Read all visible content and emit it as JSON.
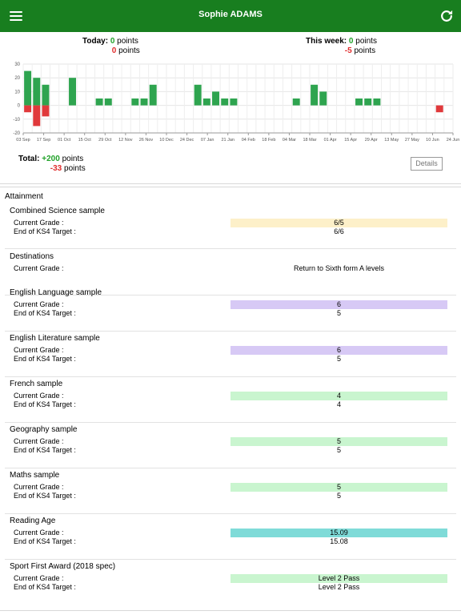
{
  "header": {
    "title": "Sophie ADAMS"
  },
  "stats": {
    "today_label": "Today:",
    "today_positive": "0",
    "today_negative": "0",
    "week_label": "This week:",
    "week_positive": "0",
    "week_negative": "-5",
    "points_word": "points",
    "total_label": "Total:",
    "total_positive": "+200",
    "total_negative": "-33",
    "details_label": "Details"
  },
  "colors": {
    "header": "#187e1f",
    "positive": "#2ea44f",
    "negative": "#e0393b"
  },
  "chart_data": {
    "type": "bar",
    "ylim": [
      -20,
      30
    ],
    "yticks": [
      30,
      20,
      10,
      0,
      -10,
      -20
    ],
    "x_labels": [
      "03 Sep",
      "17 Sep",
      "01 Oct",
      "15 Oct",
      "29 Oct",
      "12 Nov",
      "26 Nov",
      "10 Dec",
      "24 Dec",
      "07 Jan",
      "21 Jan",
      "04 Feb",
      "18 Feb",
      "04 Mar",
      "18 Mar",
      "01 Apr",
      "15 Apr",
      "29 Apr",
      "13 May",
      "27 May",
      "10 Jun",
      "24 Jun"
    ],
    "positive": [
      25,
      20,
      15,
      0,
      0,
      20,
      0,
      0,
      5,
      5,
      0,
      0,
      5,
      5,
      15,
      0,
      0,
      0,
      0,
      15,
      5,
      10,
      5,
      5,
      0,
      0,
      0,
      0,
      0,
      0,
      5,
      0,
      15,
      10,
      0,
      0,
      0,
      5,
      5,
      5,
      0,
      0,
      0,
      0,
      0,
      0,
      0,
      0
    ],
    "negative": [
      -5,
      -15,
      -8,
      0,
      0,
      0,
      0,
      0,
      0,
      0,
      0,
      0,
      0,
      0,
      0,
      0,
      0,
      0,
      0,
      0,
      0,
      0,
      0,
      0,
      0,
      0,
      0,
      0,
      0,
      0,
      0,
      0,
      0,
      0,
      0,
      0,
      0,
      0,
      0,
      0,
      0,
      0,
      0,
      0,
      0,
      0,
      -5,
      0
    ],
    "grid": true
  },
  "attainment": {
    "title": "Attainment",
    "current_label": "Current Grade :",
    "target_label": "End of KS4 Target :",
    "subjects": [
      {
        "name": "Combined Science sample",
        "current": "6/5",
        "target": "6/6",
        "color": "#fdf0c9"
      },
      {
        "name": "Destinations",
        "current": "Return to Sixth form A levels",
        "target": "",
        "color": ""
      },
      {
        "name": "English Language sample",
        "current": "6",
        "target": "5",
        "color": "#d7c9f5"
      },
      {
        "name": "English Literature sample",
        "current": "6",
        "target": "5",
        "color": "#d7c9f5"
      },
      {
        "name": "French sample",
        "current": "4",
        "target": "4",
        "color": "#c9f5cf"
      },
      {
        "name": "Geography sample",
        "current": "5",
        "target": "5",
        "color": "#c9f5cf"
      },
      {
        "name": "Maths sample",
        "current": "5",
        "target": "5",
        "color": "#c9f5cf"
      },
      {
        "name": "Reading Age",
        "current": "15.09",
        "target": "15.08",
        "color": "#7fdbd8"
      },
      {
        "name": "Sport First Award (2018 spec)",
        "current": "Level 2 Pass",
        "target": "Level 2 Pass",
        "color": "#c9f5cf"
      }
    ]
  }
}
